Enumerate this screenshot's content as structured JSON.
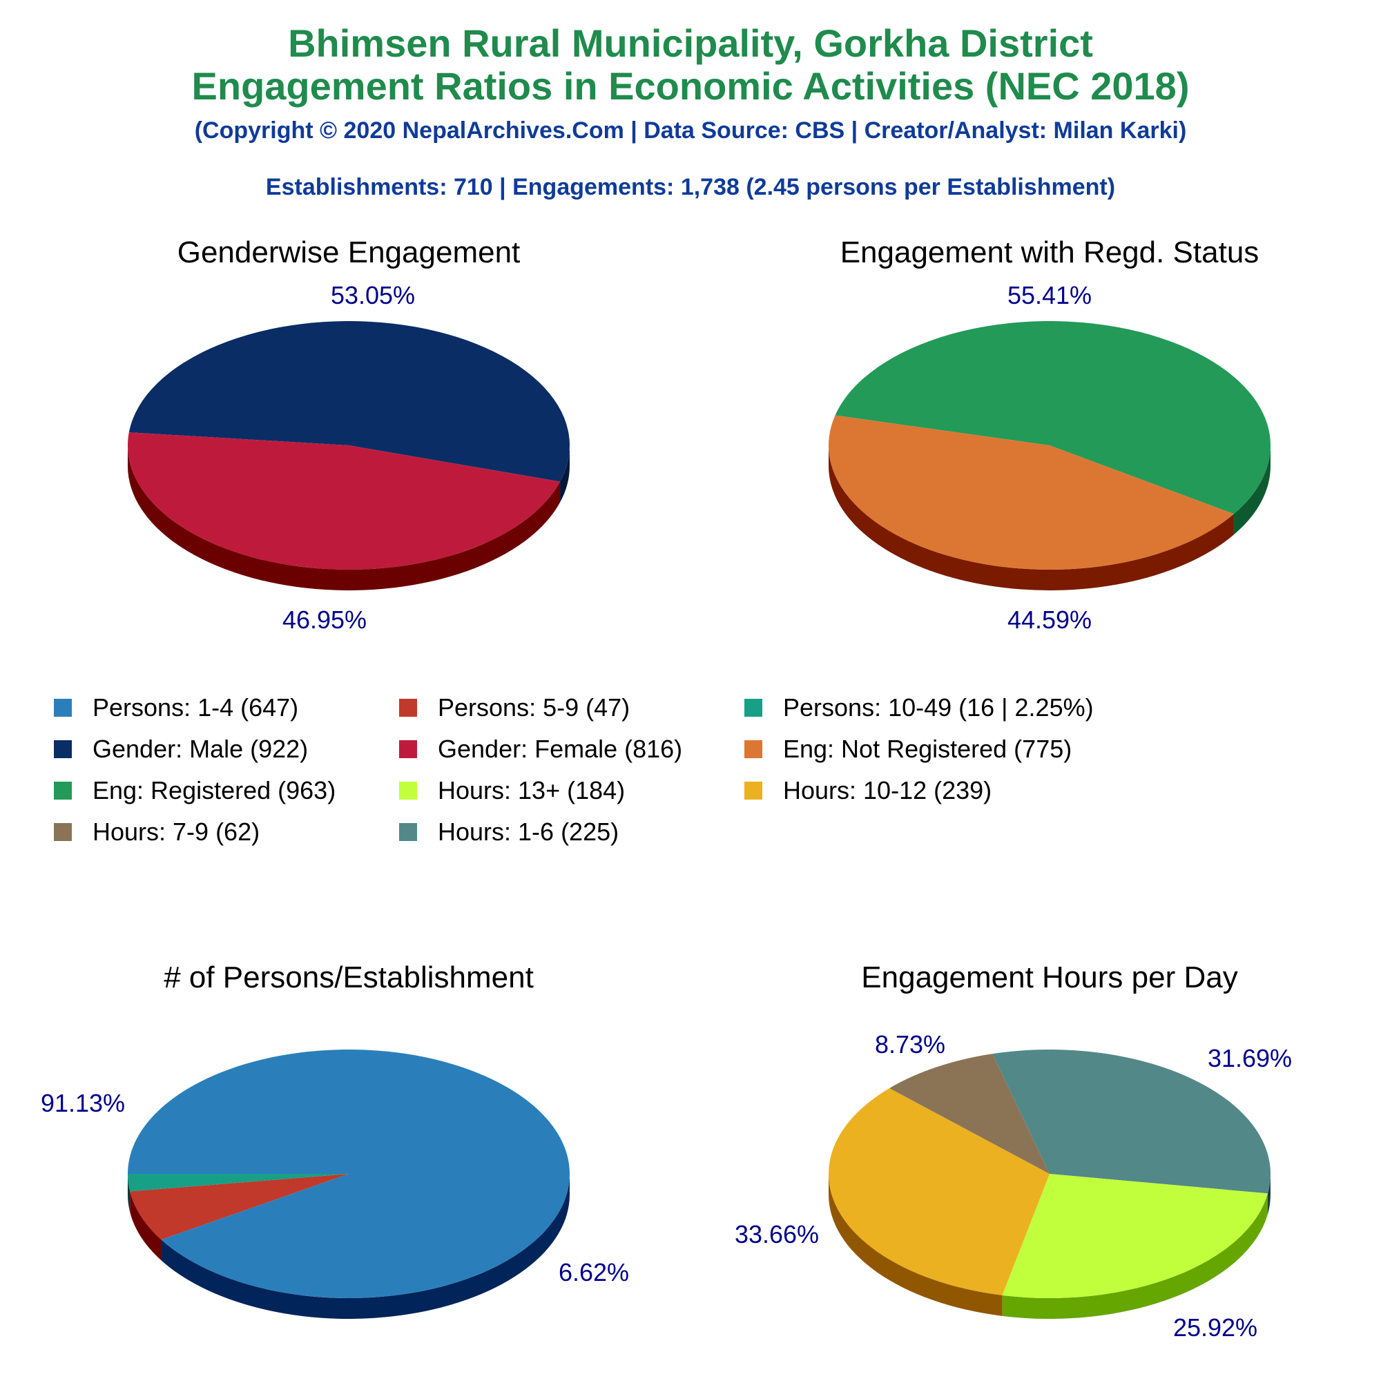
{
  "header": {
    "title_line1": "Bhimsen Rural Municipality, Gorkha District",
    "title_line2": "Engagement Ratios in Economic Activities (NEC 2018)",
    "copyright": "(Copyright © 2020 NepalArchives.Com | Data Source: CBS | Creator/Analyst: Milan Karki)",
    "summary": "Establishments: 710 | Engagements: 1,738 (2.45 persons per Establishment)"
  },
  "legend": [
    {
      "label": "Persons: 1-4 (647)",
      "color": "#2a7fba"
    },
    {
      "label": "Persons: 5-9 (47)",
      "color": "#c0392b"
    },
    {
      "label": "Persons: 10-49 (16 | 2.25%)",
      "color": "#17a086"
    },
    {
      "label": "Gender: Male (922)",
      "color": "#0b2d66"
    },
    {
      "label": "Gender: Female (816)",
      "color": "#be1b3c"
    },
    {
      "label": "Eng: Not Registered (775)",
      "color": "#dc7733"
    },
    {
      "label": "Eng: Registered (963)",
      "color": "#239a58"
    },
    {
      "label": "Hours: 13+ (184)",
      "color": "#c1ff3d"
    },
    {
      "label": "Hours: 10-12 (239)",
      "color": "#ebb121"
    },
    {
      "label": "Hours: 7-9 (62)",
      "color": "#8b7455"
    },
    {
      "label": "Hours: 1-6 (225)",
      "color": "#538888"
    }
  ],
  "chart_data": [
    {
      "type": "pie",
      "title": "Genderwise Engagement",
      "slices": [
        {
          "name": "Gender: Male",
          "value": 922,
          "label": "53.05%",
          "color": "#0b2d66",
          "side": "#06183a"
        },
        {
          "name": "Gender: Female",
          "value": 816,
          "label": "46.95%",
          "color": "#be1b3c",
          "side": "#6b0000"
        }
      ]
    },
    {
      "type": "pie",
      "title": "Engagement with Regd. Status",
      "slices": [
        {
          "name": "Eng: Registered",
          "value": 963,
          "label": "55.41%",
          "color": "#239a58",
          "side": "#0e5a30"
        },
        {
          "name": "Eng: Not Registered",
          "value": 775,
          "label": "44.59%",
          "color": "#dc7733",
          "side": "#7a1b00"
        }
      ]
    },
    {
      "type": "pie",
      "title": "# of Persons/Establishment",
      "slices": [
        {
          "name": "Persons: 1-4",
          "value": 647,
          "label": "91.13%",
          "color": "#2a7fba",
          "side": "#01245a"
        },
        {
          "name": "Persons: 5-9",
          "value": 47,
          "label": "6.62%",
          "color": "#c0392b",
          "side": "#6b0000"
        },
        {
          "name": "Persons: 10-49",
          "value": 16,
          "label": "",
          "color": "#17a086",
          "side": "#003a30"
        }
      ]
    },
    {
      "type": "pie",
      "title": "Engagement Hours per Day",
      "slices": [
        {
          "name": "Hours: 1-6",
          "value": 225,
          "label": "31.69%",
          "color": "#538888",
          "side": "#1e3e3e"
        },
        {
          "name": "Hours: 13+",
          "value": 184,
          "label": "25.92%",
          "color": "#c1ff3d",
          "side": "#66a600"
        },
        {
          "name": "Hours: 10-12",
          "value": 239,
          "label": "33.66%",
          "color": "#ebb121",
          "side": "#915700"
        },
        {
          "name": "Hours: 7-9",
          "value": 62,
          "label": "8.73%",
          "color": "#8b7455",
          "side": "#4a3a20"
        }
      ]
    }
  ]
}
